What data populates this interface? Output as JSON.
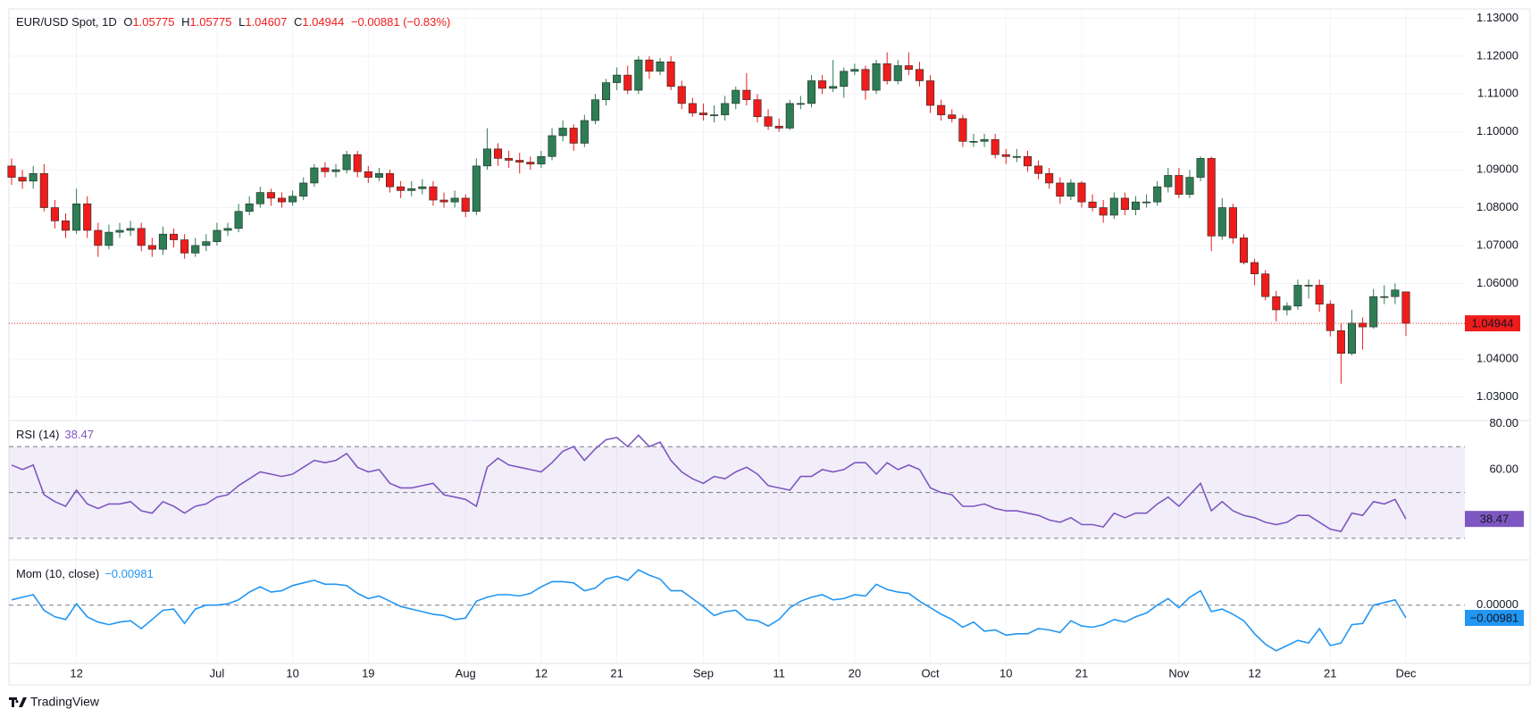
{
  "chart_data": {
    "type": "candlestick",
    "title": "EUR/USD Spot, 1D",
    "ohlc_keys": [
      "O",
      "H",
      "L",
      "C"
    ],
    "change_label": "−0.00881 (−0.83%)",
    "brand": "TradingView",
    "up_color": "#2e7d55",
    "down_color": "#ef1c1c",
    "grid": true,
    "categories": [
      null,
      null,
      null,
      null,
      null,
      null,
      "12",
      null,
      null,
      null,
      null,
      null,
      null,
      null,
      null,
      null,
      null,
      null,
      null,
      "Jul",
      null,
      null,
      null,
      null,
      null,
      null,
      "10",
      null,
      null,
      null,
      null,
      null,
      null,
      "19",
      null,
      null,
      null,
      null,
      null,
      null,
      null,
      null,
      "Aug",
      null,
      null,
      null,
      null,
      null,
      null,
      "12",
      null,
      null,
      null,
      null,
      null,
      null,
      "21",
      null,
      null,
      null,
      null,
      null,
      null,
      null,
      "Sep",
      null,
      null,
      null,
      null,
      null,
      null,
      "11",
      null,
      null,
      null,
      null,
      null,
      null,
      "20",
      null,
      null,
      null,
      null,
      null,
      null,
      "Oct",
      null,
      null,
      null,
      null,
      null,
      null,
      "10",
      null,
      null,
      null,
      null,
      null,
      null,
      "21",
      null,
      null,
      null,
      null,
      null,
      null,
      null,
      null,
      "Nov",
      null,
      null,
      null,
      null,
      null,
      null,
      "12",
      null,
      null,
      null,
      null,
      null,
      null,
      "21",
      null,
      null,
      null,
      null,
      null,
      null,
      "Dec"
    ],
    "open": [
      1.091,
      1.088,
      1.087,
      1.089,
      1.08,
      1.0765,
      1.074,
      1.081,
      1.074,
      1.07,
      1.0735,
      1.074,
      1.0745,
      1.07,
      1.069,
      1.073,
      1.0715,
      1.068,
      1.07,
      1.071,
      1.074,
      1.0745,
      1.079,
      1.081,
      1.084,
      1.0825,
      1.0815,
      1.083,
      1.0865,
      1.0905,
      1.0895,
      1.09,
      1.094,
      1.0895,
      1.088,
      1.089,
      1.0855,
      1.0845,
      1.085,
      1.0855,
      1.082,
      1.0815,
      1.0825,
      1.079,
      1.091,
      1.0955,
      1.093,
      1.0925,
      1.092,
      1.0915,
      1.0935,
      1.099,
      1.101,
      1.097,
      1.103,
      1.1085,
      1.113,
      1.115,
      1.111,
      1.119,
      1.116,
      1.1185,
      1.112,
      1.1075,
      1.105,
      1.1045,
      1.1045,
      1.1075,
      1.111,
      1.1085,
      1.104,
      1.1015,
      1.101,
      1.1075,
      1.1075,
      1.1135,
      1.1115,
      1.112,
      1.116,
      1.1165,
      1.111,
      1.118,
      1.1135,
      1.1175,
      1.1165,
      1.1135,
      1.107,
      1.1045,
      1.1035,
      1.0975,
      1.0975,
      1.098,
      1.094,
      1.0935,
      1.0935,
      1.091,
      1.089,
      1.0865,
      1.083,
      1.0865,
      1.0815,
      1.08,
      1.078,
      1.0825,
      1.0795,
      1.0815,
      1.0815,
      1.0855,
      1.0885,
      1.0835,
      1.088,
      1.093,
      1.0725,
      1.08,
      1.072,
      1.0655,
      1.0625,
      1.0565,
      1.053,
      1.054,
      1.0595,
      1.0595,
      1.0545,
      1.0475,
      1.0415,
      1.0495,
      1.0485,
      1.0565,
      1.0565,
      1.05775
    ],
    "high": [
      1.093,
      1.09,
      1.091,
      1.0915,
      1.082,
      1.0785,
      1.085,
      1.083,
      1.076,
      1.0755,
      1.076,
      1.0765,
      1.076,
      1.072,
      1.075,
      1.0745,
      1.073,
      1.072,
      1.073,
      1.076,
      1.076,
      1.081,
      1.083,
      1.0855,
      1.085,
      1.084,
      1.0845,
      1.088,
      1.0915,
      1.092,
      1.0915,
      1.095,
      1.095,
      1.091,
      1.0905,
      1.09,
      1.087,
      1.087,
      1.0875,
      1.087,
      1.084,
      1.0845,
      1.0835,
      1.093,
      1.101,
      1.097,
      1.095,
      1.0945,
      1.0935,
      1.095,
      1.101,
      1.103,
      1.102,
      1.1045,
      1.11,
      1.114,
      1.117,
      1.1175,
      1.12,
      1.12,
      1.1195,
      1.12,
      1.1135,
      1.109,
      1.1075,
      1.107,
      1.1095,
      1.112,
      1.1155,
      1.11,
      1.106,
      1.1035,
      1.1085,
      1.1095,
      1.115,
      1.115,
      1.119,
      1.117,
      1.118,
      1.1175,
      1.119,
      1.121,
      1.119,
      1.121,
      1.1185,
      1.115,
      1.1085,
      1.106,
      1.1045,
      1.0995,
      1.0995,
      1.0995,
      1.0955,
      1.0955,
      1.095,
      1.0925,
      1.0905,
      1.088,
      1.0875,
      1.087,
      1.0835,
      1.082,
      1.084,
      1.084,
      1.083,
      1.0835,
      1.087,
      1.0905,
      1.0905,
      1.09,
      1.0935,
      1.0935,
      1.0825,
      1.081,
      1.073,
      1.0665,
      1.0635,
      1.058,
      1.055,
      1.061,
      1.061,
      1.061,
      1.0555,
      1.0495,
      1.053,
      1.051,
      1.0585,
      1.0595,
      1.06,
      1.05775
    ],
    "low": [
      1.086,
      1.085,
      1.085,
      1.079,
      1.0745,
      1.072,
      1.073,
      1.072,
      1.067,
      1.069,
      1.072,
      1.0725,
      1.0685,
      1.067,
      1.0675,
      1.0695,
      1.0665,
      1.067,
      1.0685,
      1.07,
      1.0725,
      1.0735,
      1.078,
      1.08,
      1.0805,
      1.08,
      1.0805,
      1.082,
      1.0855,
      1.088,
      1.088,
      1.089,
      1.088,
      1.0865,
      1.087,
      1.084,
      1.0825,
      1.083,
      1.0835,
      1.0805,
      1.08,
      1.08,
      1.0775,
      1.078,
      1.09,
      1.091,
      1.0905,
      1.089,
      1.09,
      1.0905,
      1.0925,
      1.0975,
      1.095,
      1.096,
      1.102,
      1.107,
      1.111,
      1.11,
      1.11,
      1.114,
      1.115,
      1.111,
      1.106,
      1.104,
      1.103,
      1.1025,
      1.103,
      1.106,
      1.107,
      1.1025,
      1.1005,
      1.1,
      1.1005,
      1.106,
      1.1065,
      1.11,
      1.1105,
      1.109,
      1.115,
      1.1085,
      1.11,
      1.1125,
      1.1125,
      1.115,
      1.112,
      1.105,
      1.103,
      1.1025,
      1.096,
      1.096,
      1.096,
      1.093,
      1.0915,
      1.092,
      1.0895,
      1.0875,
      1.085,
      1.081,
      1.082,
      1.08,
      1.079,
      1.076,
      1.077,
      1.078,
      1.078,
      1.08,
      1.0805,
      1.084,
      1.0825,
      1.0825,
      1.087,
      1.0685,
      1.0715,
      1.0705,
      1.065,
      1.0595,
      1.0555,
      1.05,
      1.0515,
      1.053,
      1.056,
      1.0525,
      1.046,
      1.0335,
      1.041,
      1.0425,
      1.048,
      1.0545,
      1.0545,
      1.04607
    ],
    "close": [
      1.088,
      1.087,
      1.089,
      1.08,
      1.0765,
      1.074,
      1.081,
      1.074,
      1.07,
      1.0735,
      1.074,
      1.0745,
      1.07,
      1.069,
      1.073,
      1.0715,
      1.068,
      1.07,
      1.071,
      1.074,
      1.0745,
      1.079,
      1.081,
      1.084,
      1.0825,
      1.0815,
      1.083,
      1.0865,
      1.0905,
      1.0895,
      1.09,
      1.094,
      1.0895,
      1.088,
      1.089,
      1.0855,
      1.0845,
      1.085,
      1.0855,
      1.082,
      1.0815,
      1.0825,
      1.079,
      1.091,
      1.0955,
      1.093,
      1.0925,
      1.092,
      1.0915,
      1.0935,
      1.099,
      1.101,
      1.097,
      1.103,
      1.1085,
      1.113,
      1.115,
      1.111,
      1.119,
      1.116,
      1.1185,
      1.112,
      1.1075,
      1.105,
      1.1045,
      1.1045,
      1.1075,
      1.111,
      1.1085,
      1.104,
      1.1015,
      1.101,
      1.1075,
      1.1075,
      1.1135,
      1.1115,
      1.112,
      1.116,
      1.1165,
      1.111,
      1.118,
      1.1135,
      1.1175,
      1.1165,
      1.1135,
      1.107,
      1.1045,
      1.1035,
      1.0975,
      1.0975,
      1.098,
      1.094,
      1.0935,
      1.0935,
      1.091,
      1.089,
      1.0865,
      1.083,
      1.0865,
      1.0815,
      1.08,
      1.078,
      1.0825,
      1.0795,
      1.0815,
      1.0815,
      1.0855,
      1.0885,
      1.0835,
      1.088,
      1.093,
      1.0725,
      1.08,
      1.072,
      1.0655,
      1.0625,
      1.0565,
      1.053,
      1.054,
      1.0595,
      1.0595,
      1.0545,
      1.0475,
      1.0415,
      1.0495,
      1.0485,
      1.0565,
      1.0565,
      1.05825,
      1.04944
    ],
    "ylim": [
      1.024,
      1.132
    ],
    "yticks": [
      {
        "value": 1.03,
        "label": "1.03000"
      },
      {
        "value": 1.04,
        "label": "1.04000"
      },
      {
        "value": 1.05,
        "label": "1.05000"
      },
      {
        "value": 1.06,
        "label": "1.06000"
      },
      {
        "value": 1.07,
        "label": "1.07000"
      },
      {
        "value": 1.08,
        "label": "1.08000"
      },
      {
        "value": 1.09,
        "label": "1.09000"
      },
      {
        "value": 1.1,
        "label": "1.10000"
      },
      {
        "value": 1.11,
        "label": "1.11000"
      },
      {
        "value": 1.12,
        "label": "1.12000"
      },
      {
        "value": 1.13,
        "label": "1.13000"
      }
    ],
    "indicators": [
      {
        "type": "line",
        "name": "RSI (14)",
        "color": "#7e57c2",
        "ylim": [
          21,
          81
        ],
        "yticks": [
          {
            "value": 80,
            "label": "80.00"
          },
          {
            "value": 60,
            "label": "60.00"
          }
        ],
        "levels": [
          70,
          50,
          30
        ],
        "values": [
          62,
          60,
          62,
          49,
          46,
          44,
          51,
          45,
          43,
          45,
          45,
          46,
          42,
          41,
          46,
          44,
          41,
          44,
          45,
          48,
          49,
          53,
          56,
          59,
          58,
          57,
          58,
          61,
          64,
          63,
          64,
          67,
          61,
          59,
          60,
          54,
          52,
          52,
          53,
          54,
          49,
          48,
          47,
          44,
          61,
          65,
          62,
          61,
          60,
          59,
          63,
          68,
          70,
          64,
          69,
          73,
          74,
          70,
          75,
          70,
          72,
          64,
          59,
          56,
          54,
          57,
          56,
          59,
          61,
          58,
          53,
          52,
          51,
          57,
          57,
          60,
          59,
          60,
          63,
          63,
          58,
          63,
          60,
          62,
          60,
          52,
          50,
          49,
          44,
          44,
          45,
          43,
          42,
          42,
          41,
          40,
          38,
          37,
          39,
          36,
          36,
          35,
          41,
          39,
          41,
          41,
          45,
          48,
          44,
          49,
          54,
          42,
          46,
          42,
          40,
          39,
          37,
          36,
          37,
          40,
          40,
          37,
          34,
          33,
          41,
          40,
          46,
          45,
          47,
          38.47
        ]
      },
      {
        "type": "line",
        "name": "Mom (10, close)",
        "color": "#2196f3",
        "ylim": [
          -0.044,
          0.034
        ],
        "yticks": [
          {
            "value": 0,
            "label": "0.00000"
          }
        ],
        "last_label": "−0.00981",
        "values": [
          0.004,
          0.006,
          0.008,
          -0.004,
          -0.009,
          -0.011,
          0.001,
          -0.009,
          -0.013,
          -0.015,
          -0.013,
          -0.012,
          -0.018,
          -0.011,
          -0.004,
          -0.003,
          -0.014,
          -0.003,
          0.0,
          0.0,
          0.001,
          0.004,
          0.01,
          0.014,
          0.01,
          0.011,
          0.015,
          0.017,
          0.019,
          0.016,
          0.016,
          0.015,
          0.009,
          0.005,
          0.007,
          0.003,
          -0.001,
          -0.003,
          -0.005,
          -0.007,
          -0.008,
          -0.011,
          -0.01,
          0.003,
          0.006,
          0.008,
          0.008,
          0.007,
          0.009,
          0.014,
          0.018,
          0.018,
          0.017,
          0.011,
          0.013,
          0.02,
          0.022,
          0.019,
          0.027,
          0.023,
          0.02,
          0.011,
          0.011,
          0.005,
          -0.001,
          -0.008,
          -0.005,
          -0.004,
          -0.011,
          -0.012,
          -0.016,
          -0.011,
          -0.002,
          0.003,
          0.006,
          0.008,
          0.004,
          0.005,
          0.008,
          0.007,
          0.016,
          0.012,
          0.01,
          0.009,
          0.003,
          -0.002,
          -0.007,
          -0.011,
          -0.017,
          -0.013,
          -0.02,
          -0.019,
          -0.023,
          -0.022,
          -0.022,
          -0.018,
          -0.019,
          -0.021,
          -0.012,
          -0.016,
          -0.017,
          -0.015,
          -0.011,
          -0.013,
          -0.009,
          -0.006,
          0.0,
          0.005,
          -0.002,
          0.006,
          0.011,
          -0.005,
          -0.003,
          -0.007,
          -0.012,
          -0.022,
          -0.03,
          -0.035,
          -0.031,
          -0.027,
          -0.029,
          -0.018,
          -0.031,
          -0.029,
          -0.015,
          -0.014,
          0.0,
          0.002,
          0.004,
          -0.00981
        ]
      }
    ]
  }
}
